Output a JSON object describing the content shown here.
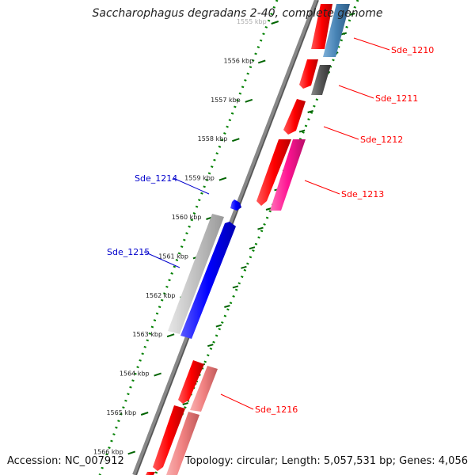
{
  "map": {
    "title": "Saccharophagus degradans 2-40, complete genome",
    "accession_text": "Accession: NC_007912",
    "topology_text": "Topology: circular; Length: 5,057,531 bp; Genes: 4,056",
    "tick_labels": [
      "1555 kbp",
      "1556 kbp",
      "1557 kbp",
      "1558 kbp",
      "1559 kbp",
      "1560 kbp",
      "1561 kbp",
      "1562 kbp",
      "1563 kbp",
      "1564 kbp",
      "1565 kbp",
      "1566 kbp"
    ],
    "forward_genes": [
      {
        "label": "Sde_1210",
        "color": "#ff0000"
      },
      {
        "label": "Sde_1211",
        "color": "#ff0000"
      },
      {
        "label": "Sde_1212",
        "color": "#ff0000"
      },
      {
        "label": "Sde_1213",
        "color": "#ff0000"
      },
      {
        "label": "Sde_1216",
        "color": "#ff0000"
      }
    ],
    "reverse_genes": [
      {
        "label": "Sde_1214",
        "color": "#0000ff"
      },
      {
        "label": "Sde_1215",
        "color": "#0000ff"
      }
    ],
    "cog_colors": {
      "steelblue": "#4682b4",
      "dark_gray": "#555555",
      "magenta": "#ff1493",
      "light_gray": "#c0c0c0",
      "salmon": "#f08080"
    }
  }
}
